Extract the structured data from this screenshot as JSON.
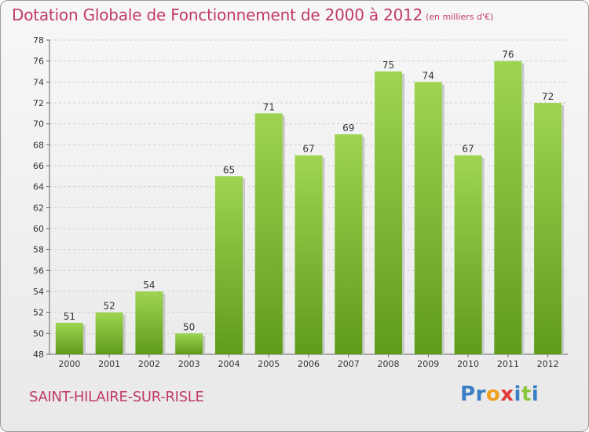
{
  "title": "Dotation Globale de Fonctionnement de 2000 à 2012",
  "unit_note": "(en milliers d'€)",
  "town": "SAINT-HILAIRE-SUR-RISLE",
  "logo": {
    "text": "Proxiti",
    "letters": [
      {
        "ch": "P",
        "color": "#3a7fc4"
      },
      {
        "ch": "r",
        "color": "#3a7fc4"
      },
      {
        "ch": "o",
        "color": "#f0a020"
      },
      {
        "ch": "x",
        "color": "#e03a3a"
      },
      {
        "ch": "i",
        "color": "#3a7fc4"
      },
      {
        "ch": "t",
        "color": "#8cc63f"
      },
      {
        "ch": "i",
        "color": "#3a7fc4"
      }
    ]
  },
  "colors": {
    "title": "#c03a66",
    "bar_top": "#9ed452",
    "bar_bottom": "#5f9c1a",
    "grid": "#cfcfcf"
  },
  "chart_data": {
    "type": "bar",
    "title": "Dotation Globale de Fonctionnement de 2000 à 2012",
    "ylabel": "",
    "xlabel": "",
    "categories": [
      "2000",
      "2001",
      "2002",
      "2003",
      "2004",
      "2005",
      "2006",
      "2007",
      "2008",
      "2009",
      "2010",
      "2011",
      "2012"
    ],
    "values": [
      51,
      52,
      54,
      50,
      65,
      71,
      67,
      69,
      75,
      74,
      67,
      76,
      72
    ],
    "ylim": [
      48,
      78
    ],
    "yticks": [
      48,
      50,
      52,
      54,
      56,
      58,
      60,
      62,
      64,
      66,
      68,
      70,
      72,
      74,
      76,
      78
    ],
    "grid": true,
    "legend": "none"
  }
}
